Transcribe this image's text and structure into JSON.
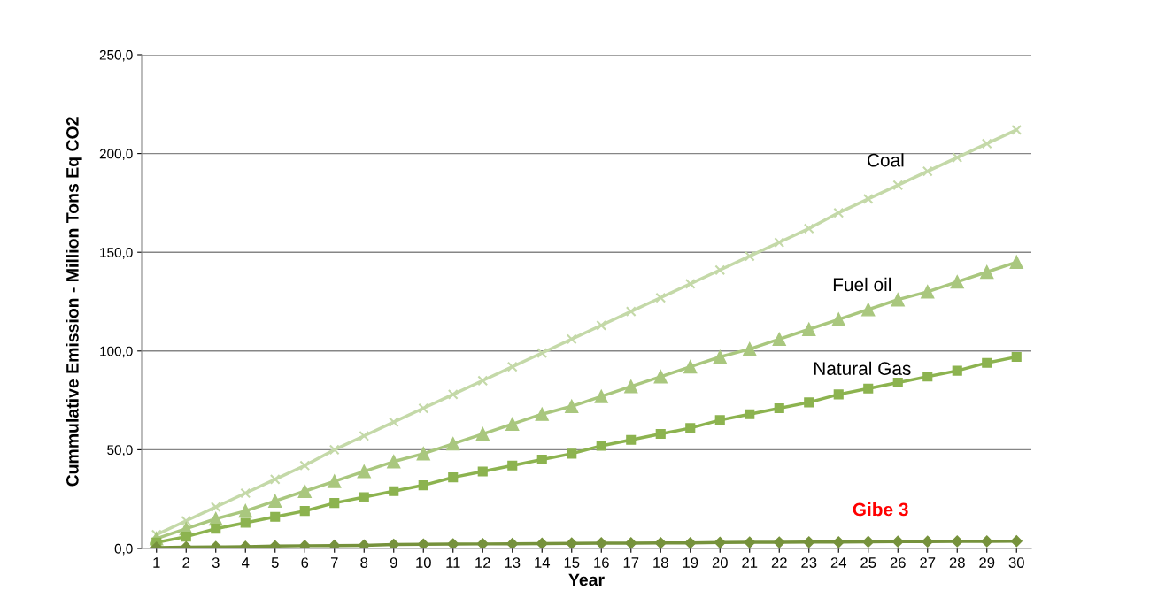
{
  "chart_data": {
    "type": "line",
    "xlabel": "Year",
    "ylabel": "Cummulative Emission - Million Tons Eq CO2",
    "categories": [
      "1",
      "2",
      "3",
      "4",
      "5",
      "6",
      "7",
      "8",
      "9",
      "10",
      "11",
      "12",
      "13",
      "14",
      "15",
      "16",
      "17",
      "18",
      "19",
      "20",
      "21",
      "22",
      "23",
      "24",
      "25",
      "26",
      "27",
      "28",
      "29",
      "30"
    ],
    "series": [
      {
        "name": "Coal",
        "color": "#c4d9a8",
        "marker": "cross",
        "values": [
          7,
          14,
          21,
          28,
          35,
          42,
          50,
          57,
          64,
          71,
          78,
          85,
          92,
          99,
          106,
          113,
          120,
          127,
          134,
          141,
          148,
          155,
          162,
          170,
          177,
          184,
          191,
          198,
          205,
          212
        ]
      },
      {
        "name": "Fuel oil",
        "color": "#a9c77e",
        "marker": "triangle",
        "values": [
          5,
          10,
          15,
          19,
          24,
          29,
          34,
          39,
          44,
          48,
          53,
          58,
          63,
          68,
          72,
          77,
          82,
          87,
          92,
          97,
          101,
          106,
          111,
          116,
          121,
          126,
          130,
          135,
          140,
          145
        ]
      },
      {
        "name": "Natural Gas",
        "color": "#8cb34f",
        "marker": "square",
        "values": [
          3,
          6,
          10,
          13,
          16,
          19,
          23,
          26,
          29,
          32,
          36,
          39,
          42,
          45,
          48,
          52,
          55,
          58,
          61,
          65,
          68,
          71,
          74,
          78,
          81,
          84,
          87,
          90,
          94,
          97
        ]
      },
      {
        "name": "Gibe 3",
        "color": "#76923c",
        "marker": "diamond",
        "values": [
          0.5,
          0.7,
          0.8,
          0.9,
          1.2,
          1.4,
          1.5,
          1.6,
          2.0,
          2.1,
          2.2,
          2.3,
          2.4,
          2.5,
          2.6,
          2.7,
          2.7,
          2.8,
          2.8,
          3.0,
          3.1,
          3.1,
          3.2,
          3.2,
          3.4,
          3.5,
          3.5,
          3.6,
          3.6,
          3.7
        ]
      }
    ],
    "ylim": [
      0,
      250
    ],
    "yticks": [
      {
        "value": 0,
        "label": "0,0"
      },
      {
        "value": 50,
        "label": "50,0"
      },
      {
        "value": 100,
        "label": "100,0"
      },
      {
        "value": 150,
        "label": "150,0"
      },
      {
        "value": 200,
        "label": "200,0"
      },
      {
        "value": 250,
        "label": "250,0"
      }
    ],
    "grid": "y",
    "legend": false,
    "line_style": "solid"
  }
}
